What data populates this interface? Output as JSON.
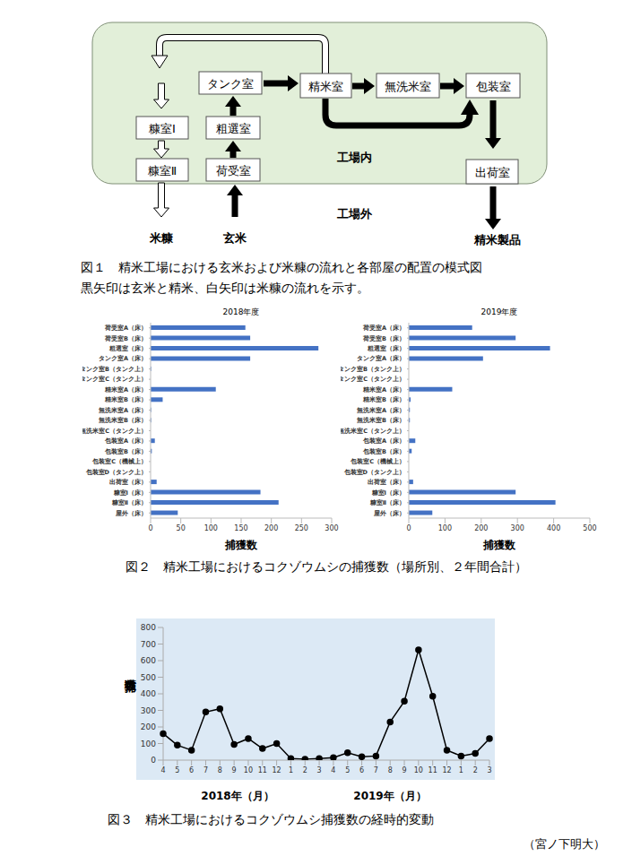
{
  "figure1": {
    "nodes": {
      "nukaI": "糠室Ⅰ",
      "nukaII": "糠室Ⅱ",
      "tank": "タンク室",
      "sosen": "粗選室",
      "niuke": "荷受室",
      "seimai": "精米室",
      "musen": "無洗米室",
      "hoso": "包装室",
      "shukka": "出荷室"
    },
    "labels": {
      "inside": "工場内",
      "outside": "工場外",
      "nuka": "米糠",
      "genmai": "玄米",
      "product": "精米製品"
    },
    "caption": [
      "図１　精米工場における玄米および米糠の流れと各部屋の配置の模式図",
      "黒矢印は玄米と精米、白矢印は米糠の流れを示す。"
    ]
  },
  "chart_data": [
    {
      "type": "bar",
      "orientation": "horizontal",
      "title": "2018年度",
      "x_label": "捕獲数",
      "categories": [
        "荷受室A（床）",
        "荷受室B（床）",
        "粗選室（床）",
        "タンク室A（床）",
        "タンク室B（タンク上）",
        "タンク室C（タンク上）",
        "精米室A（床）",
        "精米室B（床）",
        "無洗米室A（床）",
        "無洗米室B（床）",
        "無洗米室C（タンク上）",
        "包装室A（床）",
        "包装室B（床）",
        "包装室C（機械上）",
        "包装室D（タンク上）",
        "出荷室（床）",
        "糠室Ⅰ（床）",
        "糠室Ⅱ（床）",
        "屋外（床）"
      ],
      "values": [
        157,
        165,
        278,
        165,
        1,
        0,
        108,
        20,
        1,
        1,
        0,
        7,
        2,
        0,
        0,
        10,
        182,
        212,
        45
      ],
      "color": "#4472c4",
      "xlim": [
        0,
        300
      ],
      "xticks": [
        0,
        50,
        100,
        150,
        200,
        250,
        300
      ],
      "grid": false
    },
    {
      "type": "bar",
      "orientation": "horizontal",
      "title": "2019年度",
      "x_label": "捕獲数",
      "categories": [
        "荷受室A（床）",
        "荷受室B（床）",
        "粗選室（床）",
        "タンク室A（床）",
        "タンク室B（タンク上）",
        "タンク室C（タンク上）",
        "精米室A（床）",
        "精米室B（床）",
        "無洗米室A（床）",
        "無洗米室B（床）",
        "無洗米室C（タンク上）",
        "包装室A（床）",
        "包装室B（床）",
        "包装室C（機械上）",
        "包装室D（タンク上）",
        "出荷室（床）",
        "糠室Ⅰ（床）",
        "糠室Ⅱ（床）",
        "屋外（床）"
      ],
      "values": [
        175,
        295,
        390,
        205,
        0,
        0,
        120,
        5,
        3,
        3,
        0,
        18,
        8,
        0,
        0,
        12,
        295,
        405,
        65
      ],
      "color": "#4472c4",
      "xlim": [
        0,
        500
      ],
      "xticks": [
        0,
        100,
        200,
        300,
        400,
        500
      ],
      "grid": false
    },
    {
      "type": "line",
      "y_label": "捕獲数",
      "categories": [
        "4",
        "5",
        "6",
        "7",
        "8",
        "9",
        "10",
        "11",
        "12",
        "1",
        "2",
        "3",
        "4",
        "5",
        "6",
        "7",
        "8",
        "9",
        "10",
        "11",
        "12",
        "1",
        "2",
        "3"
      ],
      "values": [
        160,
        90,
        60,
        290,
        310,
        95,
        130,
        70,
        100,
        10,
        5,
        10,
        15,
        45,
        20,
        25,
        230,
        355,
        665,
        385,
        60,
        25,
        40,
        130
      ],
      "color": "#000000",
      "marker": "circle",
      "ylim": [
        0,
        800
      ],
      "yticks": [
        0,
        100,
        200,
        300,
        400,
        500,
        600,
        700,
        800
      ],
      "grid": false,
      "annotations": [
        "2018年（月）",
        "2019年（月）"
      ]
    }
  ],
  "figure2_caption": "図２　精米工場におけるコクゾウムシの捕獲数（場所別、２年間合計）",
  "figure3_caption": "図３　精米工場におけるコクゾウムシ捕獲数の経時的変動",
  "author": "（宮ノ下明大）"
}
